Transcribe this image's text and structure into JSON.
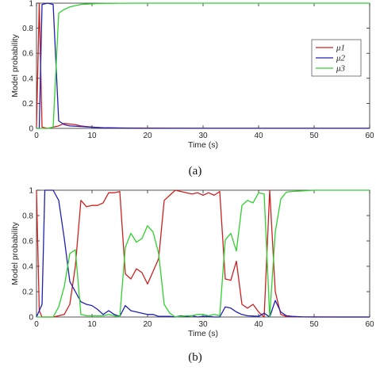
{
  "chart_data": [
    {
      "type": "line",
      "caption": "(a)",
      "xlabel": "Time (s)",
      "ylabel": "Model probability",
      "xlim": [
        0,
        60
      ],
      "ylim": [
        0,
        1
      ],
      "xticks": [
        "0",
        "10",
        "20",
        "30",
        "40",
        "50",
        "60"
      ],
      "yticks": [
        "0",
        "0.2",
        "0.4",
        "0.6",
        "0.8",
        "1"
      ],
      "grid": false,
      "legend": "right",
      "series": [
        {
          "name": "μ1",
          "color": "#cc2020",
          "points": [
            [
              0,
              0.01
            ],
            [
              0.5,
              1.0
            ],
            [
              1,
              0.01
            ],
            [
              2,
              0.0
            ],
            [
              3,
              0.01
            ],
            [
              4,
              0.02
            ],
            [
              5,
              0.04
            ],
            [
              6,
              0.035
            ],
            [
              7,
              0.03
            ],
            [
              8,
              0.02
            ],
            [
              10,
              0.01
            ],
            [
              12,
              0.005
            ],
            [
              15,
              0.003
            ],
            [
              20,
              0.002
            ],
            [
              30,
              0.001
            ],
            [
              40,
              0.001
            ],
            [
              50,
              0.001
            ],
            [
              60,
              0.001
            ]
          ]
        },
        {
          "name": "μ2",
          "color": "#2020b0",
          "points": [
            [
              0,
              0.0
            ],
            [
              0.5,
              0.0
            ],
            [
              1,
              0.99
            ],
            [
              2,
              1.0
            ],
            [
              3,
              0.99
            ],
            [
              4,
              0.06
            ],
            [
              5,
              0.03
            ],
            [
              6,
              0.02
            ],
            [
              8,
              0.015
            ],
            [
              10,
              0.01
            ],
            [
              12,
              0.005
            ],
            [
              15,
              0.003
            ],
            [
              20,
              0.001
            ],
            [
              30,
              0.001
            ],
            [
              40,
              0.001
            ],
            [
              50,
              0.001
            ],
            [
              60,
              0.001
            ]
          ]
        },
        {
          "name": "μ3",
          "color": "#30d030",
          "points": [
            [
              0,
              0.0
            ],
            [
              1,
              0.0
            ],
            [
              2,
              0.0
            ],
            [
              3,
              0.01
            ],
            [
              4,
              0.92
            ],
            [
              5,
              0.95
            ],
            [
              6,
              0.97
            ],
            [
              7,
              0.98
            ],
            [
              8,
              0.99
            ],
            [
              10,
              0.995
            ],
            [
              12,
              0.998
            ],
            [
              15,
              0.999
            ],
            [
              20,
              1.0
            ],
            [
              30,
              1.0
            ],
            [
              40,
              1.0
            ],
            [
              50,
              1.0
            ],
            [
              60,
              1.0
            ]
          ]
        }
      ]
    },
    {
      "type": "line",
      "caption": "(b)",
      "xlabel": "Time (s)",
      "ylabel": "Model probability",
      "xlim": [
        0,
        60
      ],
      "ylim": [
        0,
        1
      ],
      "xticks": [
        "0",
        "10",
        "20",
        "30",
        "40",
        "50",
        "60"
      ],
      "yticks": [
        "0",
        "0.2",
        "0.4",
        "0.6",
        "0.8",
        "1"
      ],
      "grid": false,
      "series": [
        {
          "name": "μ1",
          "color": "#cc2020",
          "points": [
            [
              0,
              1.0
            ],
            [
              0.5,
              0.05
            ],
            [
              1,
              0.0
            ],
            [
              2,
              0.0
            ],
            [
              3,
              0.0
            ],
            [
              4,
              0.01
            ],
            [
              5,
              0.02
            ],
            [
              6,
              0.1
            ],
            [
              7,
              0.4
            ],
            [
              8,
              0.92
            ],
            [
              9,
              0.87
            ],
            [
              10,
              0.88
            ],
            [
              11,
              0.88
            ],
            [
              12,
              0.9
            ],
            [
              13,
              0.98
            ],
            [
              14,
              0.98
            ],
            [
              15,
              0.99
            ],
            [
              16,
              0.34
            ],
            [
              17,
              0.3
            ],
            [
              18,
              0.38
            ],
            [
              19,
              0.35
            ],
            [
              20,
              0.26
            ],
            [
              21,
              0.36
            ],
            [
              22,
              0.46
            ],
            [
              23,
              0.92
            ],
            [
              24,
              0.96
            ],
            [
              25,
              1.0
            ],
            [
              26,
              0.99
            ],
            [
              27,
              0.98
            ],
            [
              28,
              0.97
            ],
            [
              29,
              0.98
            ],
            [
              30,
              0.96
            ],
            [
              31,
              0.98
            ],
            [
              32,
              0.96
            ],
            [
              33,
              0.99
            ],
            [
              34,
              0.3
            ],
            [
              35,
              0.29
            ],
            [
              36,
              0.44
            ],
            [
              37,
              0.1
            ],
            [
              38,
              0.07
            ],
            [
              39,
              0.1
            ],
            [
              40,
              0.04
            ],
            [
              41,
              0.0
            ],
            [
              42,
              1.0
            ],
            [
              43,
              0.2
            ],
            [
              44,
              0.02
            ],
            [
              45,
              0.005
            ],
            [
              46,
              0.002
            ],
            [
              48,
              0.001
            ],
            [
              50,
              0.001
            ],
            [
              55,
              0.0
            ],
            [
              60,
              0.0
            ]
          ]
        },
        {
          "name": "μ2",
          "color": "#2020b0",
          "points": [
            [
              0,
              0.0
            ],
            [
              1,
              0.1
            ],
            [
              1.5,
              1.0
            ],
            [
              2,
              1.0
            ],
            [
              3,
              1.0
            ],
            [
              4,
              0.92
            ],
            [
              5,
              0.62
            ],
            [
              6,
              0.28
            ],
            [
              7,
              0.2
            ],
            [
              8,
              0.12
            ],
            [
              9,
              0.1
            ],
            [
              10,
              0.09
            ],
            [
              11,
              0.06
            ],
            [
              12,
              0.02
            ],
            [
              13,
              0.05
            ],
            [
              14,
              0.02
            ],
            [
              15,
              0.005
            ],
            [
              16,
              0.09
            ],
            [
              17,
              0.05
            ],
            [
              18,
              0.04
            ],
            [
              19,
              0.03
            ],
            [
              20,
              0.02
            ],
            [
              21,
              0.02
            ],
            [
              22,
              0.005
            ],
            [
              24,
              0.005
            ],
            [
              25,
              0.0
            ],
            [
              26,
              0.01
            ],
            [
              27,
              0.005
            ],
            [
              28,
              0.01
            ],
            [
              29,
              0.0
            ],
            [
              30,
              0.005
            ],
            [
              31,
              0.005
            ],
            [
              32,
              0.0
            ],
            [
              33,
              0.0
            ],
            [
              34,
              0.08
            ],
            [
              35,
              0.07
            ],
            [
              36,
              0.04
            ],
            [
              37,
              0.02
            ],
            [
              38,
              0.01
            ],
            [
              40,
              0.005
            ],
            [
              41,
              0.03
            ],
            [
              42,
              0.0
            ],
            [
              43,
              0.13
            ],
            [
              44,
              0.04
            ],
            [
              45,
              0.01
            ],
            [
              46,
              0.005
            ],
            [
              48,
              0.001
            ],
            [
              50,
              0.0
            ],
            [
              60,
              0.0
            ]
          ]
        },
        {
          "name": "μ3",
          "color": "#30d030",
          "points": [
            [
              0,
              0.0
            ],
            [
              1,
              0.0
            ],
            [
              2,
              0.0
            ],
            [
              3,
              0.0
            ],
            [
              4,
              0.08
            ],
            [
              5,
              0.24
            ],
            [
              6,
              0.5
            ],
            [
              7,
              0.53
            ],
            [
              8,
              0.02
            ],
            [
              9,
              0.01
            ],
            [
              10,
              0.01
            ],
            [
              12,
              0.01
            ],
            [
              13,
              0.02
            ],
            [
              14,
              0.01
            ],
            [
              15,
              0.0
            ],
            [
              16,
              0.55
            ],
            [
              17,
              0.66
            ],
            [
              18,
              0.59
            ],
            [
              19,
              0.62
            ],
            [
              20,
              0.72
            ],
            [
              21,
              0.67
            ],
            [
              22,
              0.5
            ],
            [
              23,
              0.1
            ],
            [
              24,
              0.03
            ],
            [
              25,
              0.0
            ],
            [
              26,
              0.005
            ],
            [
              27,
              0.01
            ],
            [
              28,
              0.01
            ],
            [
              29,
              0.02
            ],
            [
              30,
              0.02
            ],
            [
              31,
              0.01
            ],
            [
              32,
              0.02
            ],
            [
              33,
              0.01
            ],
            [
              34,
              0.61
            ],
            [
              35,
              0.66
            ],
            [
              36,
              0.52
            ],
            [
              37,
              0.88
            ],
            [
              38,
              0.92
            ],
            [
              39,
              0.9
            ],
            [
              40,
              0.98
            ],
            [
              41,
              0.97
            ],
            [
              42,
              0.0
            ],
            [
              43,
              0.67
            ],
            [
              44,
              0.93
            ],
            [
              45,
              0.985
            ],
            [
              46,
              0.99
            ],
            [
              48,
              0.995
            ],
            [
              50,
              1.0
            ],
            [
              55,
              1.0
            ],
            [
              60,
              1.0
            ]
          ]
        }
      ]
    }
  ]
}
